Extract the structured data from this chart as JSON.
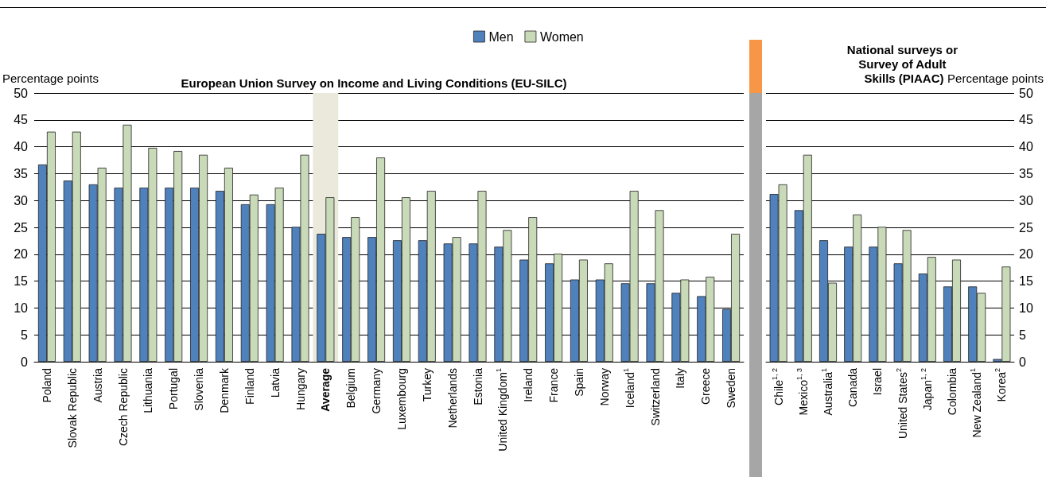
{
  "chart_data": [
    {
      "type": "bar",
      "title": "European Union Survey on Income and Living Conditions (EU-SILC)",
      "ylabel": "Percentage points",
      "categories": [
        "Poland",
        "Slovak Republic",
        "Austria",
        "Czech Republic",
        "Lithuania",
        "Portugal",
        "Slovenia",
        "Denmark",
        "Finland",
        "Latvia",
        "Hungary",
        "Average",
        "Belgium",
        "Germany",
        "Luxembourg",
        "Turkey",
        "Netherlands",
        "Estonia",
        "United Kingdom$^{1}$",
        "Ireland",
        "France",
        "Spain",
        "Norway",
        "Iceland$^{1}$",
        "Switzerland",
        "Italy",
        "Greece",
        "Sweden"
      ],
      "series": [
        {
          "name": "Men",
          "color": "#4f81bd",
          "values": [
            36.7,
            33.7,
            33.0,
            32.4,
            32.4,
            32.4,
            32.4,
            31.8,
            29.3,
            29.3,
            25.1,
            23.8,
            23.2,
            23.2,
            22.6,
            22.6,
            22.0,
            22.0,
            21.4,
            19.0,
            18.3,
            15.3,
            15.3,
            14.6,
            14.6,
            12.8,
            12.2,
            9.8
          ]
        },
        {
          "name": "Women",
          "color": "#c9dab8",
          "values": [
            42.8,
            42.8,
            36.1,
            44.1,
            39.8,
            39.2,
            38.5,
            36.1,
            31.1,
            32.4,
            38.5,
            30.6,
            26.9,
            38.0,
            30.6,
            31.8,
            23.2,
            31.8,
            24.5,
            26.9,
            20.1,
            19.0,
            18.3,
            31.8,
            28.2,
            15.3,
            15.8,
            23.8
          ]
        }
      ],
      "ylim": [
        0,
        50
      ],
      "yticks": [
        0,
        5,
        10,
        15,
        20,
        25,
        30,
        35,
        40,
        45,
        50
      ],
      "grid": "y",
      "legend": "top",
      "bands": [
        {
          "axis": "x",
          "from": "Average",
          "to": "Average",
          "color": "#ebe8dc"
        }
      ]
    },
    {
      "type": "bar",
      "title": "National surveys or Survey of Adult Skills (PIAAC)",
      "ylabel": "Percentage points",
      "categories": [
        "Chile$^{1, 2}$",
        "Mexico$^{1, 3}$",
        "Australia$^{1}$",
        "Canada",
        "Israel",
        "United States$^{2}$",
        "Japan$^{1, 2}$",
        "Colombia",
        "New Zealand$^{1}$",
        "Korea$^{2}$"
      ],
      "series": [
        {
          "name": "Men",
          "color": "#4f81bd",
          "values": [
            31.2,
            28.2,
            22.6,
            21.4,
            21.4,
            18.3,
            16.4,
            14.0,
            14.0,
            0.5
          ]
        },
        {
          "name": "Women",
          "color": "#c9dab8",
          "values": [
            33.0,
            38.5,
            14.7,
            27.4,
            25.1,
            24.5,
            19.5,
            19.0,
            12.8,
            17.7
          ]
        }
      ],
      "ylim": [
        0,
        50
      ],
      "yticks": [
        0,
        5,
        10,
        15,
        20,
        25,
        30,
        35,
        40,
        45,
        50
      ],
      "grid": "y",
      "legend": false
    }
  ]
}
